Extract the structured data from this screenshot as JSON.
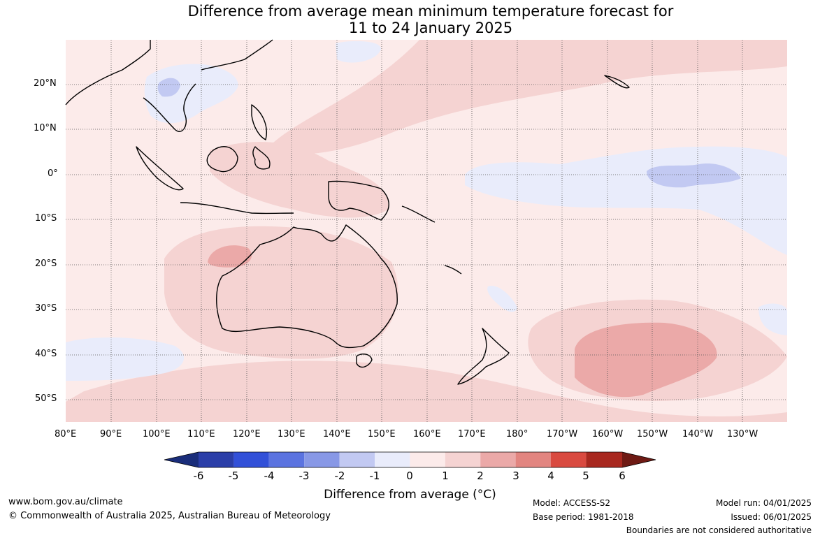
{
  "title": {
    "line1": "Difference from average mean minimum temperature forecast for",
    "line2": "11 to 24 January 2025"
  },
  "map": {
    "latitude_labels": [
      "20°N",
      "10°N",
      "0°",
      "10°S",
      "20°S",
      "30°S",
      "40°S",
      "50°S"
    ],
    "longitude_labels": [
      "80°E",
      "90°E",
      "100°E",
      "110°E",
      "120°E",
      "130°E",
      "140°E",
      "150°E",
      "160°E",
      "170°E",
      "180°",
      "170°W",
      "160°W",
      "150°W",
      "140°W",
      "130°W"
    ]
  },
  "colorbar": {
    "title": "Difference from average (°C)",
    "ticks": [
      "-6",
      "-5",
      "-4",
      "-3",
      "-2",
      "-1",
      "0",
      "1",
      "2",
      "3",
      "4",
      "5",
      "6"
    ],
    "colors": [
      "#1a2d7a",
      "#2b3ea8",
      "#3250d8",
      "#5b73e0",
      "#8898e6",
      "#c2c9f2",
      "#e9ecfb",
      "#fcebea",
      "#f5d3d2",
      "#eba9a8",
      "#e28580",
      "#d94a40",
      "#a8281f",
      "#6e1a14"
    ]
  },
  "footer": {
    "website": "www.bom.gov.au/climate",
    "copyright": "© Commonwealth of Australia 2025, Australian Bureau of Meteorology",
    "model": "Model: ACCESS-S2",
    "base_period": "Base period: 1981-2018",
    "model_run": "Model run: 04/01/2025",
    "issued": "Issued: 06/01/2025",
    "boundaries": "Boundaries are not considered authoritative"
  }
}
